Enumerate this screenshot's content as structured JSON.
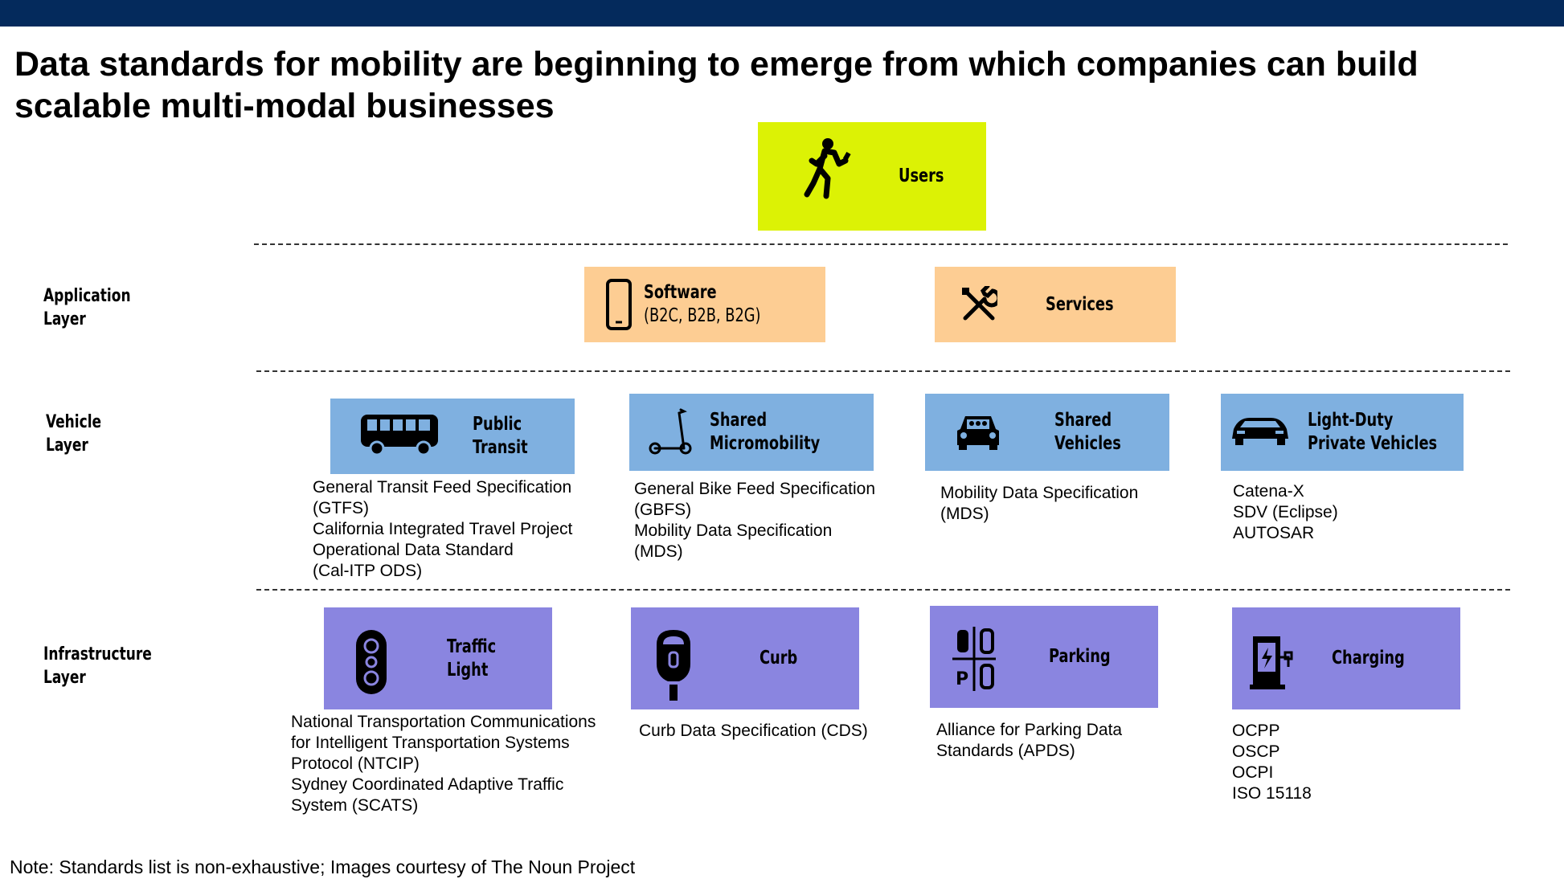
{
  "title": "Data standards for mobility are beginning to emerge from which companies can build scalable multi-modal businesses",
  "users": {
    "label": "Users",
    "icon": "pedestrian-with-phone-icon"
  },
  "layers": {
    "application": "Application Layer",
    "vehicle": "Vehicle Layer",
    "infrastructure": "Infrastructure Layer"
  },
  "application": [
    {
      "label": "Software",
      "sub": "(B2C, B2B, B2G)",
      "icon": "smartphone-icon"
    },
    {
      "label": "Services",
      "icon": "wrench-screwdriver-icon"
    }
  ],
  "vehicle": [
    {
      "label": "Public Transit",
      "icon": "bus-icon",
      "standards": [
        "General Transit Feed Specification",
        "(GTFS)",
        "California Integrated Travel Project",
        "Operational Data Standard",
        "(Cal-ITP ODS)"
      ]
    },
    {
      "label": "Shared Micromobility",
      "icon": "scooter-icon",
      "standards": [
        "General Bike Feed Specification",
        "(GBFS)",
        "Mobility Data Specification",
        "(MDS)"
      ]
    },
    {
      "label": "Shared Vehicles",
      "icon": "shared-car-icon",
      "standards": [
        "Mobility Data Specification",
        "(MDS)"
      ]
    },
    {
      "label": "Light-Duty Private Vehicles",
      "icon": "private-car-icon",
      "standards": [
        "Catena-X",
        "SDV (Eclipse)",
        "AUTOSAR"
      ]
    }
  ],
  "infrastructure": [
    {
      "label": "Traffic Light",
      "icon": "traffic-light-icon",
      "standards": [
        "National Transportation Communications",
        "for Intelligent Transportation Systems",
        "Protocol (NTCIP)",
        "Sydney Coordinated Adaptive Traffic",
        "System (SCATS)"
      ]
    },
    {
      "label": "Curb",
      "icon": "parking-meter-icon",
      "standards": [
        "Curb Data Specification (CDS)"
      ]
    },
    {
      "label": "Parking",
      "icon": "parking-lot-icon",
      "standards": [
        "Alliance for Parking Data",
        "Standards (APDS)"
      ]
    },
    {
      "label": "Charging",
      "icon": "ev-charger-icon",
      "standards": [
        "OCPP",
        "OSCP",
        "OCPI",
        "ISO 15118"
      ]
    }
  ],
  "note": "Note: Standards list is non-exhaustive; Images courtesy of The Noun Project",
  "colors": {
    "topbar": "#042a5c",
    "users": "#dcf205",
    "application": "#fdcd93",
    "vehicle": "#7fb0e0",
    "infrastructure": "#8a85e0"
  }
}
